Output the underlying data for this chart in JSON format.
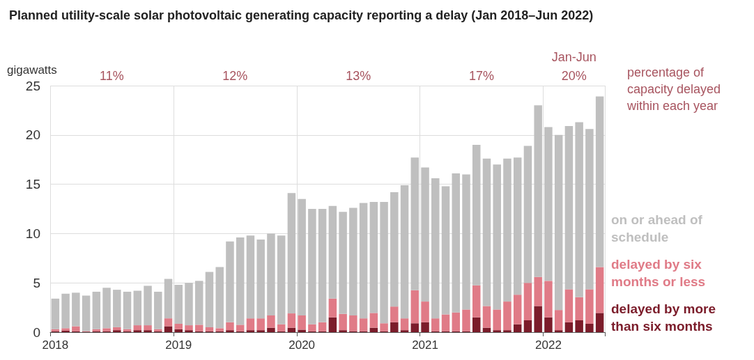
{
  "chart_data": {
    "type": "bar",
    "title": "Planned utility-scale solar photovoltaic generating capacity reporting a delay (Jan 2018–Jun 2022)",
    "ylabel": "gigawatts",
    "categories": [
      "2018",
      null,
      null,
      null,
      null,
      null,
      null,
      null,
      null,
      null,
      null,
      null,
      "2019",
      null,
      null,
      null,
      null,
      null,
      null,
      null,
      null,
      null,
      null,
      null,
      "2020",
      null,
      null,
      null,
      null,
      null,
      null,
      null,
      null,
      null,
      null,
      null,
      "2021",
      null,
      null,
      null,
      null,
      null,
      null,
      null,
      null,
      null,
      null,
      null,
      "2022",
      null,
      null,
      null,
      null,
      null
    ],
    "stacked": true,
    "series": [
      {
        "name": "delayed by more than six months",
        "color": "#7b1c2a",
        "values": [
          0.1,
          0.15,
          0.1,
          0.05,
          0.1,
          0.1,
          0.2,
          0.1,
          0.2,
          0.2,
          0.1,
          0.6,
          0.3,
          0.2,
          0.1,
          0.1,
          0.1,
          0.2,
          0.1,
          0.2,
          0.2,
          0.45,
          0.1,
          0.45,
          0.25,
          0.1,
          0.1,
          1.5,
          0.2,
          0.1,
          0.1,
          0.45,
          0.1,
          1.0,
          0.2,
          0.9,
          1.0,
          0.1,
          0.1,
          0.1,
          0.1,
          1.5,
          0.45,
          0.2,
          0.2,
          0.8,
          1.2,
          2.65,
          1.5,
          0.2,
          1.0,
          1.2,
          0.85,
          1.95
        ]
      },
      {
        "name": "delayed by six months or less",
        "color": "#e07b87",
        "values": [
          0.2,
          0.25,
          0.5,
          0.05,
          0.2,
          0.3,
          0.3,
          0.2,
          0.5,
          0.5,
          0.2,
          0.8,
          0.55,
          0.5,
          0.65,
          0.4,
          0.3,
          0.8,
          0.65,
          1.2,
          1.2,
          1.25,
          0.7,
          1.45,
          1.45,
          0.7,
          0.9,
          1.9,
          1.65,
          1.6,
          1.3,
          1.5,
          0.8,
          1.6,
          1.2,
          3.35,
          2.1,
          1.3,
          1.7,
          1.9,
          2.2,
          3.25,
          2.2,
          2.1,
          2.9,
          3.0,
          3.8,
          2.95,
          3.7,
          2.05,
          3.35,
          2.35,
          3.5,
          4.65
        ]
      },
      {
        "name": "on or ahead of schedule",
        "color": "#bfbfbf",
        "values": [
          3.1,
          3.5,
          3.4,
          3.6,
          3.8,
          4.1,
          3.8,
          3.8,
          3.5,
          4.0,
          3.8,
          4.0,
          3.95,
          4.3,
          4.45,
          5.6,
          6.2,
          8.2,
          8.85,
          8.4,
          8.0,
          8.3,
          9.0,
          12.2,
          11.8,
          11.7,
          11.5,
          9.4,
          10.35,
          10.9,
          11.7,
          11.25,
          12.3,
          11.6,
          13.5,
          13.45,
          13.6,
          14.2,
          13.0,
          14.1,
          13.7,
          14.25,
          14.95,
          14.7,
          14.5,
          13.9,
          13.9,
          17.4,
          15.6,
          17.75,
          16.55,
          17.75,
          16.25,
          17.3
        ]
      }
    ],
    "ylim": [
      0,
      25
    ],
    "yticks": [
      0,
      5,
      10,
      15,
      20,
      25
    ],
    "grid": true,
    "legend": "right",
    "annotations": [
      "11%",
      "12%",
      "13%",
      "17%",
      "Jan-Jun",
      "20%",
      "percentage of capacity delayed within each year"
    ]
  }
}
